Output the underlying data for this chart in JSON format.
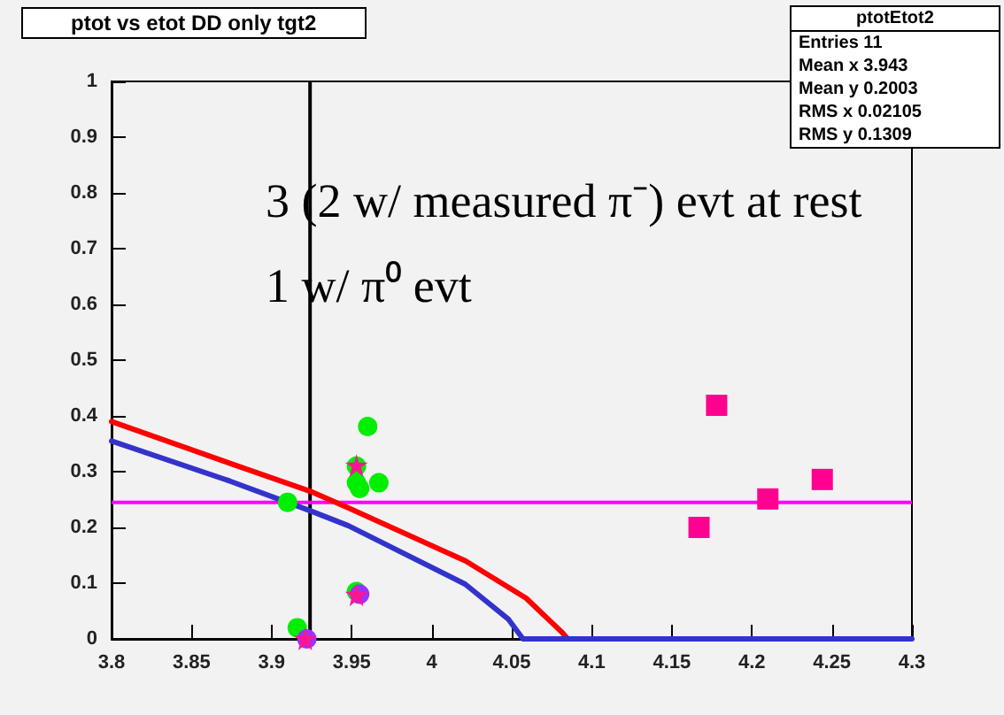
{
  "chart_data": {
    "type": "scatter",
    "title": "ptot vs etot DD only tgt2",
    "annotations": [
      "3 (2 w/ measured π⁻) evt at rest",
      "1 w/ π⁰ evt",
      "ptotEtot2",
      "Entries 11",
      "Mean x 3.943",
      "Mean y 0.2003",
      "RMS x 0.02105",
      "RMS y 0.1309"
    ],
    "series": [
      {
        "type": "line",
        "color": "#ff0000",
        "marker": "none",
        "x": [
          3.8,
          3.874,
          3.924,
          3.948,
          4.021,
          4.059,
          4.081,
          4.085
        ],
        "values": [
          0.39,
          0.315,
          0.265,
          0.235,
          0.14,
          0.073,
          0.013,
          0
        ]
      },
      {
        "type": "line",
        "color": "#3333cc",
        "marker": "none",
        "x": [
          3.8,
          3.874,
          3.924,
          3.948,
          4.021,
          4.048,
          4.057,
          4.3
        ],
        "values": [
          0.355,
          0.283,
          0.23,
          0.203,
          0.098,
          0.035,
          0,
          0
        ]
      },
      {
        "color": "#00ee00",
        "marker": "circle",
        "x": [
          3.96,
          3.953,
          3.955,
          3.967,
          3.91,
          3.916,
          3.953,
          3.953
        ],
        "values": [
          0.381,
          0.28,
          0.27,
          0.28,
          0.245,
          0.02,
          0.31,
          0.085
        ]
      },
      {
        "color": "#9933ff",
        "marker": "circle",
        "x": [
          3.955,
          3.922
        ],
        "values": [
          0.08,
          0
        ]
      },
      {
        "color": "#ff1493",
        "marker": "star",
        "x": [
          3.953,
          3.953,
          3.921
        ],
        "values": [
          0.311,
          0.079,
          0
        ]
      },
      {
        "color": "#ff0090",
        "marker": "square",
        "x": [
          4.167,
          4.178,
          4.21,
          4.244
        ],
        "values": [
          0.2,
          0.419,
          0.251,
          0.286
        ]
      }
    ],
    "xlim": [
      3.8,
      4.3
    ],
    "xticks": [
      3.8,
      3.85,
      3.9,
      3.95,
      4,
      4.05,
      4.1,
      4.15,
      4.2,
      4.25,
      4.3
    ],
    "ylim": [
      0,
      1
    ],
    "yticks": [
      0,
      0.1,
      0.2,
      0.3,
      0.4,
      0.5,
      0.6,
      0.7,
      0.8,
      0.9,
      1
    ],
    "ref_lines": [
      {
        "axis": "x",
        "value": 3.924,
        "color": "#000000"
      },
      {
        "axis": "y",
        "value": 0.245,
        "color": "#ff00ff"
      }
    ],
    "grid": false
  }
}
